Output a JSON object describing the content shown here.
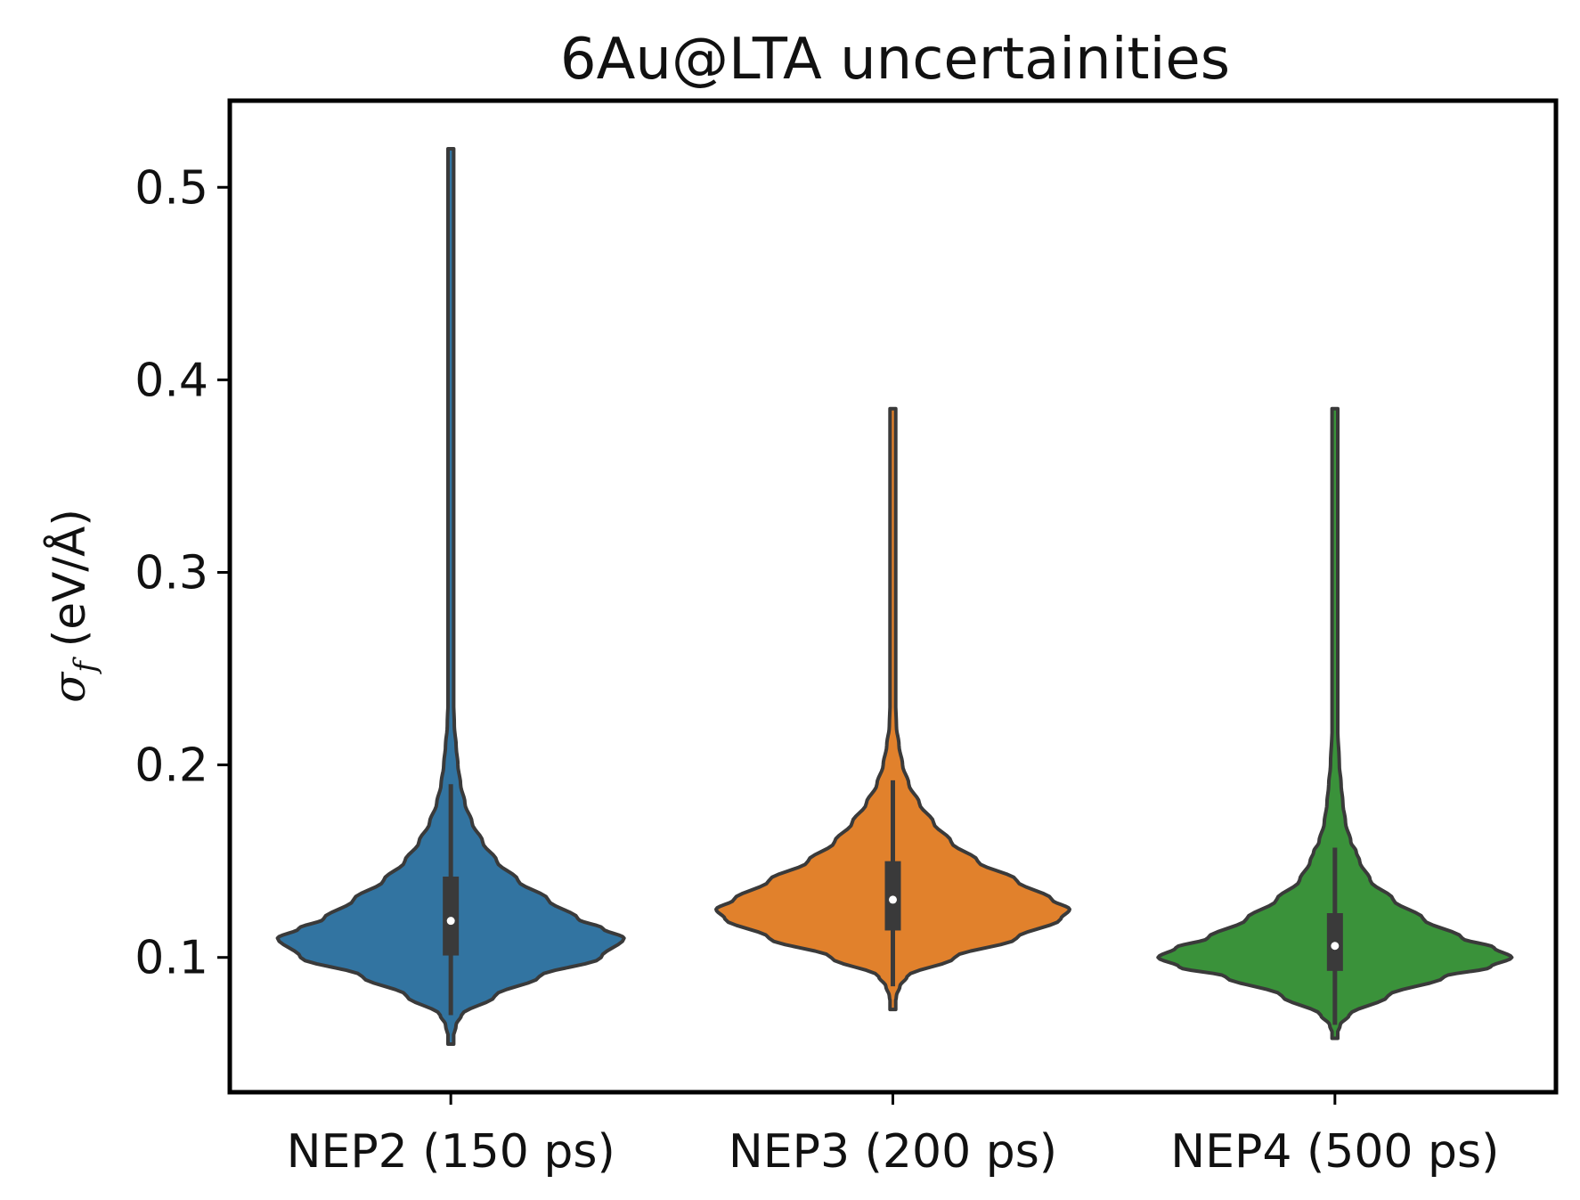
{
  "chart_data": {
    "type": "violin",
    "title": "6Au@LTA uncertainities",
    "xlabel": "",
    "ylabel": {
      "symbol": "σ",
      "subscript": "f",
      "unit": " (eV/Å)"
    },
    "categories": [
      "NEP2 (150 ps)",
      "NEP3 (200 ps)",
      "NEP4 (500 ps)"
    ],
    "colors": [
      "#3274a1",
      "#e1812c",
      "#3a923a"
    ],
    "outline_color": "#3a3a3a",
    "ylim": [
      0.03,
      0.545
    ],
    "yticks": [
      {
        "value": 0.1,
        "label": "0.1"
      },
      {
        "value": 0.2,
        "label": "0.2"
      },
      {
        "value": 0.3,
        "label": "0.3"
      },
      {
        "value": 0.4,
        "label": "0.4"
      },
      {
        "value": 0.5,
        "label": "0.5"
      }
    ],
    "grid": false,
    "series": [
      {
        "median": 0.119,
        "q1": 0.101,
        "q3": 0.142,
        "whisker_low": 0.07,
        "whisker_high": 0.19,
        "min": 0.055,
        "max": 0.52,
        "density": [
          [
            0.055,
            0.0
          ],
          [
            0.065,
            0.03
          ],
          [
            0.07,
            0.06
          ],
          [
            0.08,
            0.25
          ],
          [
            0.09,
            0.5
          ],
          [
            0.1,
            0.85
          ],
          [
            0.11,
            0.98
          ],
          [
            0.115,
            0.86
          ],
          [
            0.12,
            0.72
          ],
          [
            0.13,
            0.55
          ],
          [
            0.14,
            0.38
          ],
          [
            0.15,
            0.26
          ],
          [
            0.16,
            0.18
          ],
          [
            0.17,
            0.12
          ],
          [
            0.18,
            0.08
          ],
          [
            0.19,
            0.055
          ],
          [
            0.2,
            0.04
          ],
          [
            0.21,
            0.03
          ],
          [
            0.22,
            0.02
          ],
          [
            0.24,
            0.012
          ],
          [
            0.27,
            0.008
          ],
          [
            0.3,
            0.006
          ],
          [
            0.4,
            0.005
          ],
          [
            0.52,
            0.0
          ]
        ]
      },
      {
        "median": 0.13,
        "q1": 0.114,
        "q3": 0.15,
        "whisker_low": 0.085,
        "whisker_high": 0.192,
        "min": 0.073,
        "max": 0.385,
        "density": [
          [
            0.073,
            0.0
          ],
          [
            0.08,
            0.02
          ],
          [
            0.085,
            0.04
          ],
          [
            0.09,
            0.08
          ],
          [
            0.1,
            0.35
          ],
          [
            0.11,
            0.7
          ],
          [
            0.12,
            0.95
          ],
          [
            0.125,
            1.0
          ],
          [
            0.13,
            0.9
          ],
          [
            0.14,
            0.7
          ],
          [
            0.15,
            0.48
          ],
          [
            0.16,
            0.33
          ],
          [
            0.17,
            0.23
          ],
          [
            0.18,
            0.15
          ],
          [
            0.19,
            0.09
          ],
          [
            0.2,
            0.055
          ],
          [
            0.21,
            0.035
          ],
          [
            0.22,
            0.02
          ],
          [
            0.24,
            0.01
          ],
          [
            0.27,
            0.007
          ],
          [
            0.3,
            0.005
          ],
          [
            0.385,
            0.0
          ]
        ]
      },
      {
        "median": 0.106,
        "q1": 0.093,
        "q3": 0.123,
        "whisker_low": 0.065,
        "whisker_high": 0.157,
        "min": 0.058,
        "max": 0.385,
        "density": [
          [
            0.058,
            0.0
          ],
          [
            0.065,
            0.03
          ],
          [
            0.07,
            0.08
          ],
          [
            0.08,
            0.3
          ],
          [
            0.09,
            0.62
          ],
          [
            0.095,
            0.88
          ],
          [
            0.1,
            1.0
          ],
          [
            0.105,
            0.9
          ],
          [
            0.11,
            0.72
          ],
          [
            0.12,
            0.5
          ],
          [
            0.13,
            0.33
          ],
          [
            0.14,
            0.2
          ],
          [
            0.15,
            0.14
          ],
          [
            0.155,
            0.12
          ],
          [
            0.16,
            0.09
          ],
          [
            0.17,
            0.06
          ],
          [
            0.18,
            0.045
          ],
          [
            0.19,
            0.035
          ],
          [
            0.2,
            0.025
          ],
          [
            0.22,
            0.015
          ],
          [
            0.25,
            0.01
          ],
          [
            0.28,
            0.007
          ],
          [
            0.3,
            0.005
          ],
          [
            0.385,
            0.0
          ]
        ]
      }
    ]
  }
}
